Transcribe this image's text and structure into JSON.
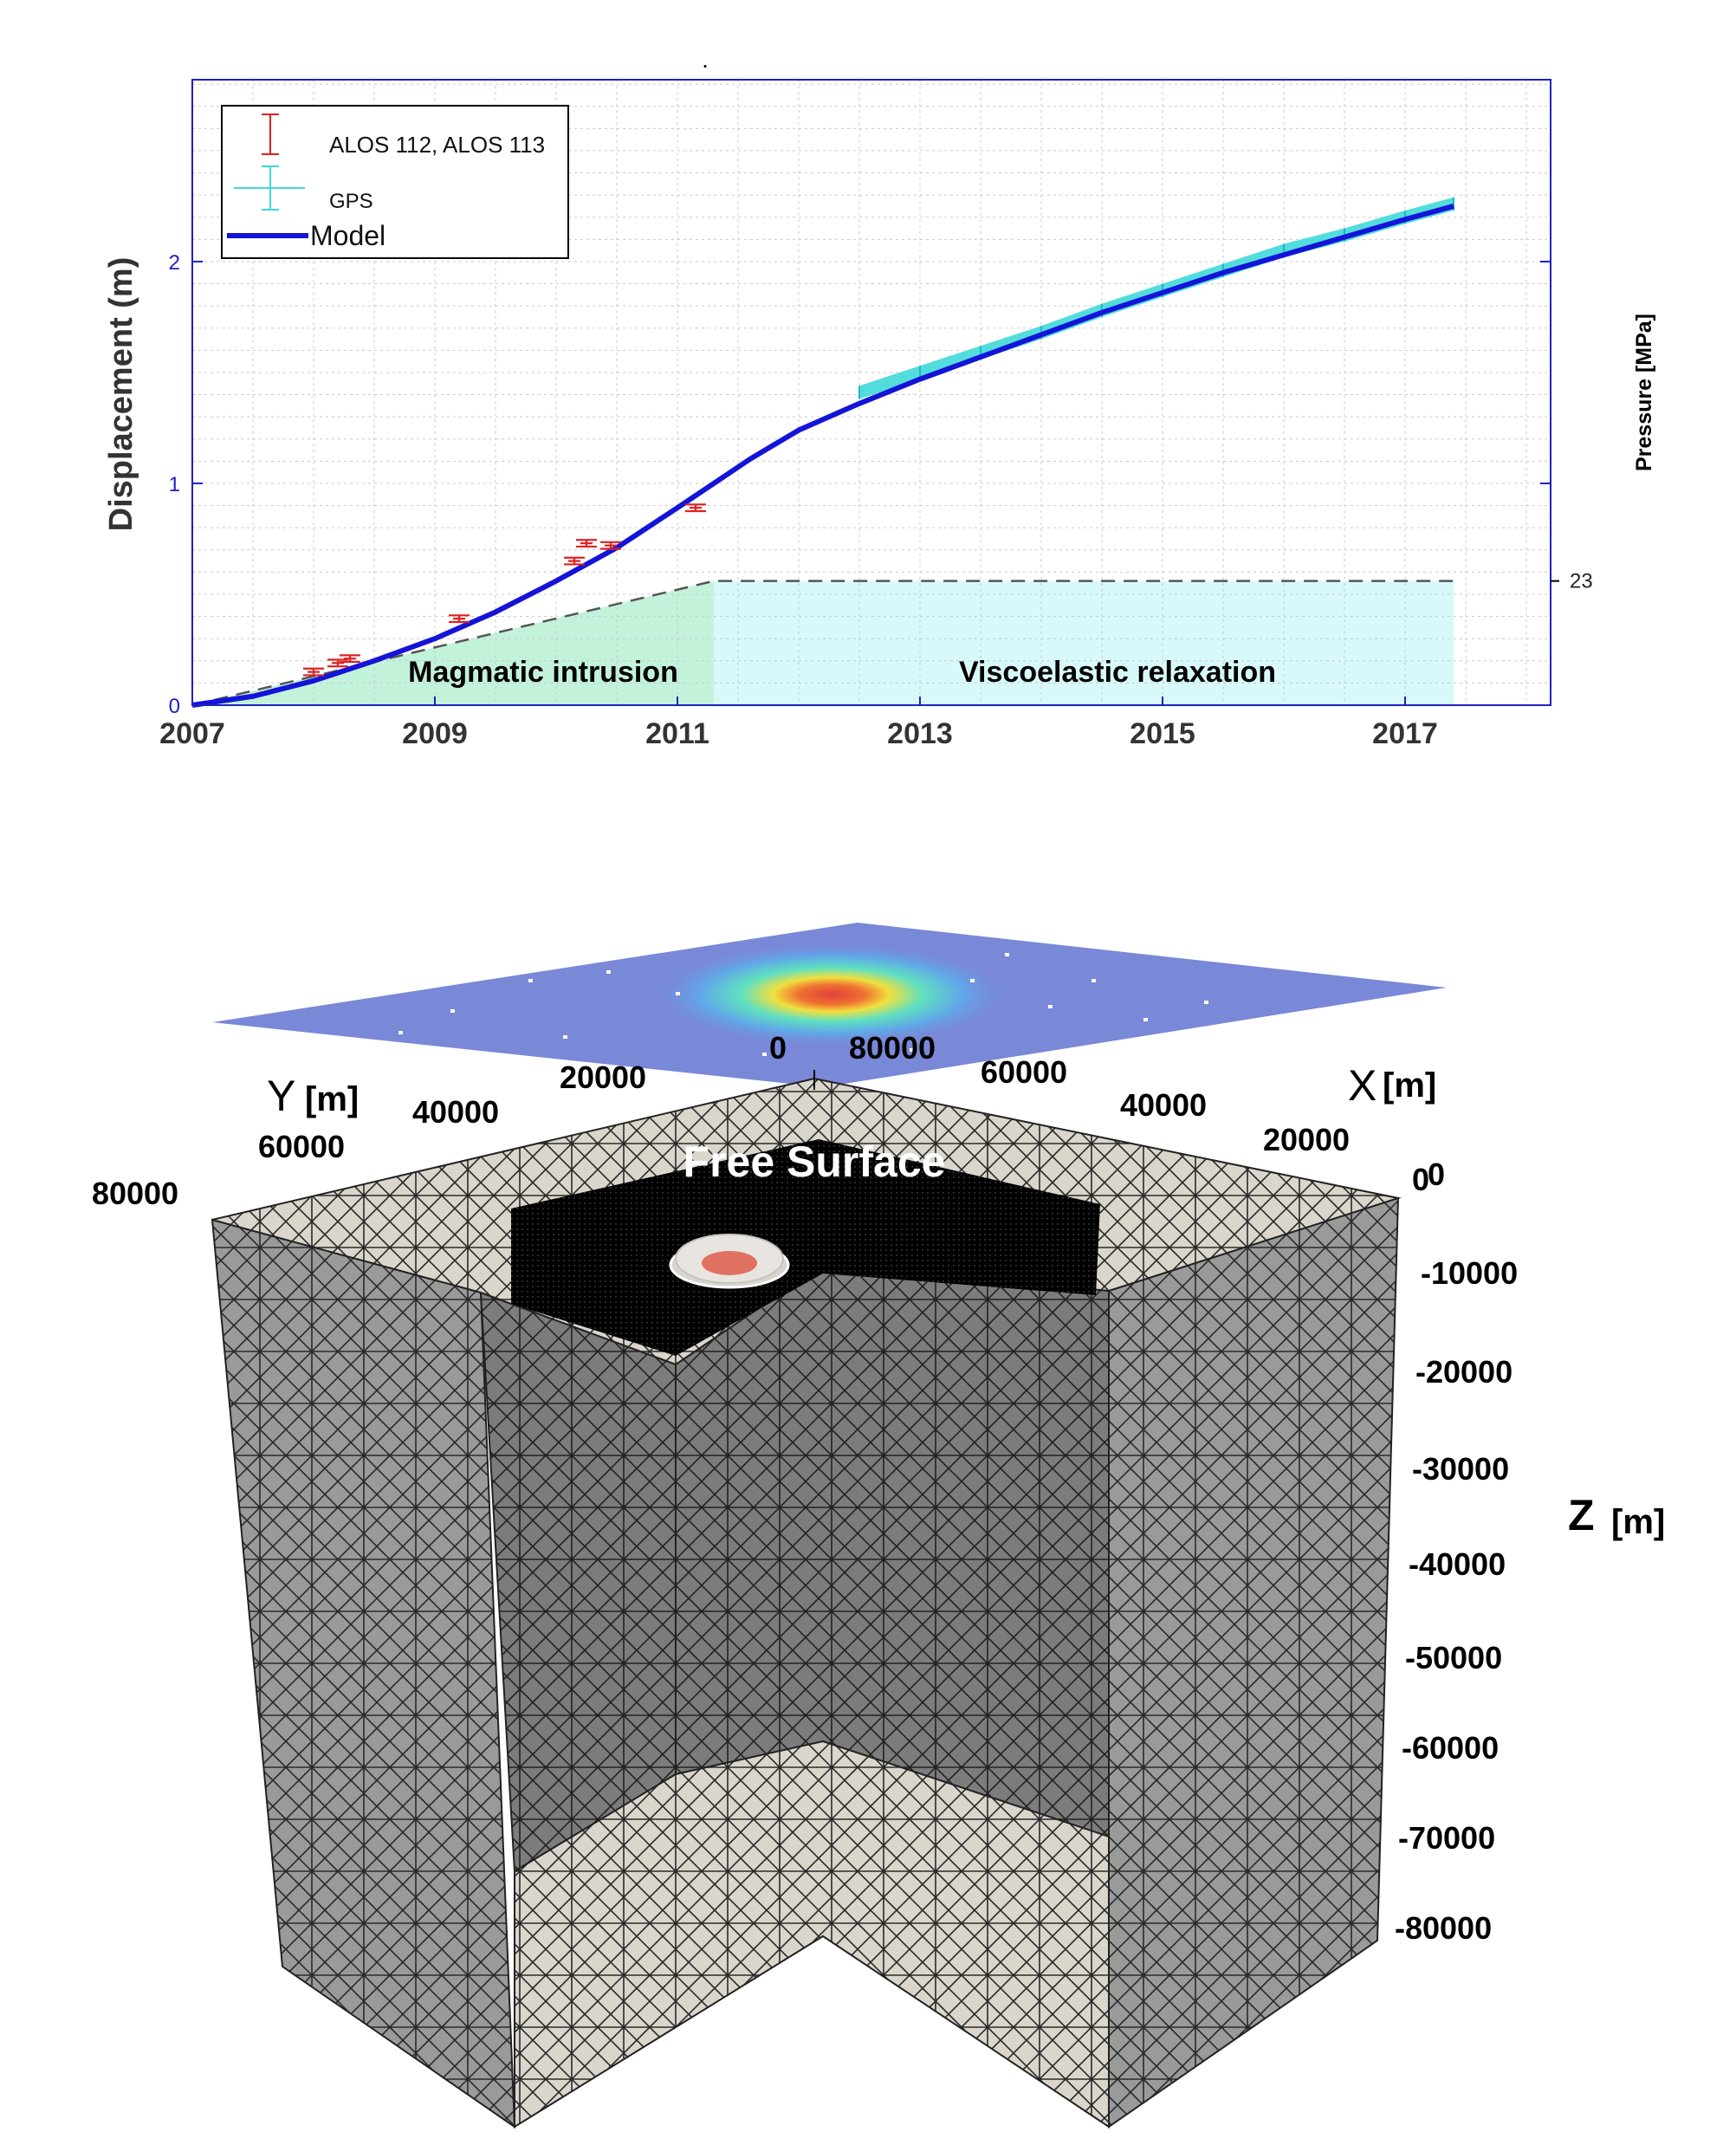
{
  "chart_data": {
    "type": "line",
    "ylabel": "Displacement (m)",
    "y2label": "Pressure [MPa]",
    "xlim": [
      2007,
      2018.2
    ],
    "ylim": [
      0,
      2.82
    ],
    "xticks": [
      "2007",
      "2009",
      "2011",
      "2013",
      "2015",
      "2017"
    ],
    "yticks": [
      "0",
      "1",
      "2"
    ],
    "y2ticks": [
      "23"
    ],
    "grid": true,
    "legend_position": "top-left",
    "marker_top": ".",
    "series": [
      {
        "name": "ALOS 112, ALOS 113",
        "kind": "errorbar",
        "color": "#e02020",
        "x": [
          2008.0,
          2008.2,
          2008.3,
          2009.2,
          2010.15,
          2010.25,
          2010.45,
          2011.15
        ],
        "y": [
          0.15,
          0.19,
          0.21,
          0.39,
          0.65,
          0.73,
          0.72,
          0.89
        ],
        "err": [
          0.015,
          0.015,
          0.015,
          0.015,
          0.015,
          0.015,
          0.015,
          0.015
        ]
      },
      {
        "name": "GPS",
        "kind": "band",
        "color": "#40d8d8",
        "x": [
          2012.5,
          2013.0,
          2013.5,
          2014.0,
          2014.5,
          2015.0,
          2015.5,
          2016.0,
          2016.5,
          2017.0,
          2017.4
        ],
        "y": [
          1.41,
          1.5,
          1.59,
          1.68,
          1.78,
          1.87,
          1.96,
          2.05,
          2.12,
          2.2,
          2.26
        ],
        "err": [
          0.03,
          0.03,
          0.03,
          0.03,
          0.03,
          0.03,
          0.03,
          0.03,
          0.03,
          0.03,
          0.03
        ]
      },
      {
        "name": "Model",
        "kind": "line",
        "color": "#1414d8",
        "x": [
          2007.0,
          2007.5,
          2008.0,
          2008.5,
          2009.0,
          2009.5,
          2010.0,
          2010.5,
          2011.0,
          2011.3,
          2011.6,
          2012.0,
          2012.5,
          2013.0,
          2013.5,
          2014.0,
          2014.5,
          2015.0,
          2015.5,
          2016.0,
          2016.5,
          2017.0,
          2017.4
        ],
        "y": [
          0.0,
          0.04,
          0.11,
          0.2,
          0.3,
          0.42,
          0.56,
          0.71,
          0.89,
          1.0,
          1.11,
          1.24,
          1.36,
          1.47,
          1.57,
          1.67,
          1.77,
          1.86,
          1.95,
          2.03,
          2.11,
          2.19,
          2.25
        ]
      }
    ],
    "pressure_line": {
      "kind": "dashed",
      "color": "#555555",
      "x": [
        2007.0,
        2011.3,
        2017.4
      ],
      "y": [
        0.0,
        0.56,
        0.56
      ]
    },
    "phases": [
      {
        "label": "Magmatic intrusion",
        "x": [
          2007.0,
          2011.3
        ],
        "color": "#b8f0d4"
      },
      {
        "label": "Viscoelastic relaxation",
        "x": [
          2011.3,
          2017.4
        ],
        "color": "#d4f8f8"
      }
    ]
  },
  "mesh": {
    "title": "Free Surface",
    "x_axis": {
      "label": "X",
      "unit": "[m]",
      "ticks": [
        "80000",
        "60000",
        "40000",
        "20000",
        "0"
      ]
    },
    "y_axis": {
      "label": "Y",
      "unit": "[m]",
      "ticks": [
        "0",
        "20000",
        "40000",
        "60000",
        "80000"
      ]
    },
    "z_axis": {
      "label": "Z",
      "unit": "[m]",
      "ticks": [
        "0",
        "-10000",
        "-20000",
        "-30000",
        "-40000",
        "-50000",
        "-60000",
        "-70000",
        "-80000"
      ]
    }
  }
}
